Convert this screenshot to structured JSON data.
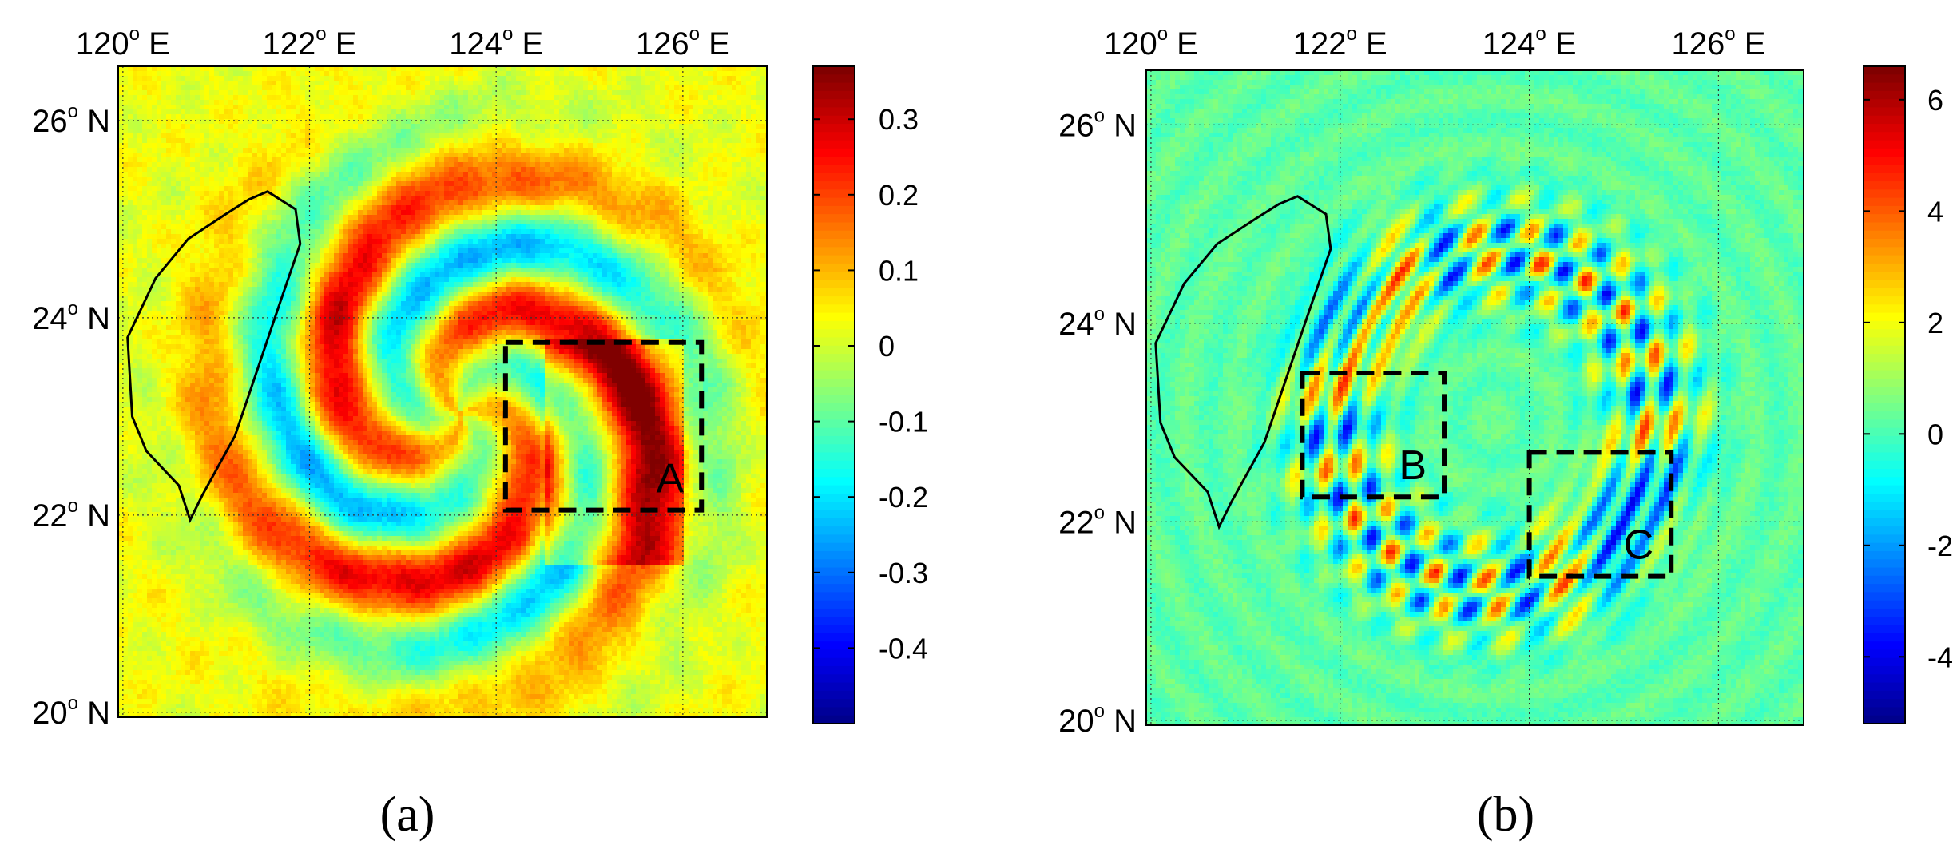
{
  "figure": {
    "panels": [
      {
        "id": "a",
        "caption": "(a)",
        "lon_ticks": [
          "120",
          "122",
          "124",
          "126"
        ],
        "lon_suffix": "E",
        "lat_ticks": [
          "26",
          "24",
          "22",
          "20"
        ],
        "lat_suffix": "N",
        "colorbar_ticks": [
          "0.3",
          "0.2",
          "0.1",
          "0",
          "-0.1",
          "-0.2",
          "-0.3",
          "-0.4"
        ],
        "colorbar_range": [
          -0.5,
          0.37
        ],
        "boxes": [
          {
            "label": "A",
            "lon": [
              124.1,
              126.2
            ],
            "lat": [
              22.05,
              23.75
            ]
          }
        ],
        "field_amplitude": 0.35,
        "background_level": 0.03
      },
      {
        "id": "b",
        "caption": "(b)",
        "lon_ticks": [
          "120",
          "122",
          "124",
          "126"
        ],
        "lon_suffix": "E",
        "lat_ticks": [
          "26",
          "24",
          "22",
          "20"
        ],
        "lat_suffix": "N",
        "colorbar_ticks": [
          "6",
          "4",
          "2",
          "0",
          "-2",
          "-4"
        ],
        "colorbar_range": [
          -5.2,
          6.6
        ],
        "boxes": [
          {
            "label": "B",
            "lon": [
              121.6,
              123.1
            ],
            "lat": [
              22.25,
              23.5
            ]
          },
          {
            "label": "C",
            "lon": [
              124.0,
              125.5
            ],
            "lat": [
              21.45,
              22.7
            ]
          }
        ],
        "field_amplitude": 5.5,
        "background_level": 0.3
      }
    ],
    "map_extent": {
      "lon": [
        119.95,
        126.9
      ],
      "lat": [
        19.95,
        26.55
      ]
    },
    "coastline_name": "Taiwan",
    "colormap": "jet",
    "colormap_stops": [
      "#00008f",
      "#0000ff",
      "#00ffff",
      "#ffff00",
      "#ff0000",
      "#800000"
    ]
  }
}
